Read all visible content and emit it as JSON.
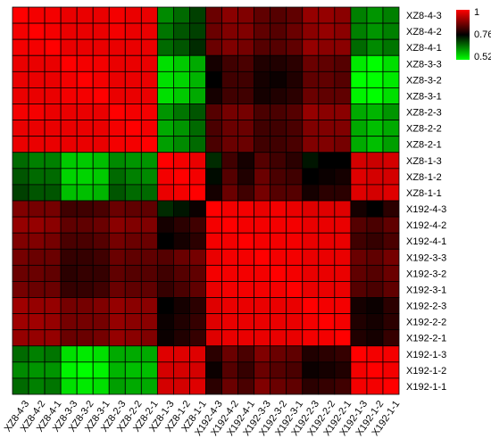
{
  "chart_data": {
    "type": "heatmap",
    "rows": [
      "XZ8-4-3",
      "XZ8-4-2",
      "XZ8-4-1",
      "XZ8-3-3",
      "XZ8-3-2",
      "XZ8-3-1",
      "XZ8-2-3",
      "XZ8-2-2",
      "XZ8-2-1",
      "XZ8-1-3",
      "XZ8-1-2",
      "XZ8-1-1",
      "X192-4-3",
      "X192-4-2",
      "X192-4-1",
      "X192-3-3",
      "X192-3-2",
      "X192-3-1",
      "X192-2-3",
      "X192-2-2",
      "X192-2-1",
      "X192-1-3",
      "X192-1-2",
      "X192-1-1"
    ],
    "columns": [
      "XZ8-4-3",
      "XZ8-4-2",
      "XZ8-4-1",
      "XZ8-3-3",
      "XZ8-3-2",
      "XZ8-3-1",
      "XZ8-2-3",
      "XZ8-2-2",
      "XZ8-2-1",
      "XZ8-1-3",
      "XZ8-1-2",
      "XZ8-1-1",
      "X192-4-3",
      "X192-4-2",
      "X192-4-1",
      "X192-3-3",
      "X192-3-2",
      "X192-3-1",
      "X192-2-3",
      "X192-2-2",
      "X192-2-1",
      "X192-1-3",
      "X192-1-2",
      "X192-1-1"
    ],
    "values": [
      [
        1.0,
        0.99,
        0.99,
        0.98,
        0.98,
        0.98,
        0.99,
        0.98,
        0.98,
        0.63,
        0.66,
        0.7,
        0.86,
        0.89,
        0.88,
        0.85,
        0.84,
        0.85,
        0.9,
        0.9,
        0.89,
        0.64,
        0.62,
        0.64
      ],
      [
        0.99,
        1.0,
        0.99,
        0.98,
        0.98,
        0.98,
        0.99,
        0.98,
        0.98,
        0.65,
        0.68,
        0.7,
        0.86,
        0.88,
        0.88,
        0.85,
        0.84,
        0.86,
        0.89,
        0.9,
        0.89,
        0.64,
        0.62,
        0.64
      ],
      [
        0.99,
        0.99,
        1.0,
        0.98,
        0.98,
        0.98,
        0.98,
        0.98,
        0.98,
        0.66,
        0.68,
        0.72,
        0.86,
        0.88,
        0.87,
        0.84,
        0.84,
        0.85,
        0.9,
        0.89,
        0.89,
        0.66,
        0.63,
        0.65
      ],
      [
        0.98,
        0.98,
        0.98,
        1.0,
        0.99,
        0.99,
        0.98,
        0.98,
        0.98,
        0.55,
        0.57,
        0.6,
        0.78,
        0.82,
        0.83,
        0.79,
        0.79,
        0.8,
        0.86,
        0.85,
        0.84,
        0.54,
        0.52,
        0.55
      ],
      [
        0.98,
        0.98,
        0.98,
        0.99,
        1.0,
        0.99,
        0.98,
        0.98,
        0.98,
        0.55,
        0.56,
        0.59,
        0.76,
        0.82,
        0.82,
        0.78,
        0.77,
        0.79,
        0.85,
        0.85,
        0.84,
        0.52,
        0.52,
        0.54
      ],
      [
        0.98,
        0.98,
        0.98,
        0.99,
        0.99,
        1.0,
        0.98,
        0.98,
        0.98,
        0.55,
        0.57,
        0.6,
        0.78,
        0.82,
        0.82,
        0.78,
        0.79,
        0.8,
        0.86,
        0.85,
        0.85,
        0.53,
        0.52,
        0.55
      ],
      [
        0.99,
        0.99,
        0.98,
        0.98,
        0.98,
        0.98,
        1.0,
        0.99,
        0.99,
        0.62,
        0.65,
        0.68,
        0.84,
        0.87,
        0.87,
        0.83,
        0.83,
        0.84,
        0.9,
        0.89,
        0.89,
        0.6,
        0.59,
        0.62
      ],
      [
        0.98,
        0.98,
        0.98,
        0.98,
        0.98,
        0.98,
        0.99,
        1.0,
        0.99,
        0.6,
        0.62,
        0.66,
        0.83,
        0.86,
        0.86,
        0.82,
        0.82,
        0.83,
        0.88,
        0.88,
        0.88,
        0.6,
        0.58,
        0.6
      ],
      [
        0.98,
        0.98,
        0.98,
        0.98,
        0.98,
        0.98,
        0.99,
        0.99,
        1.0,
        0.61,
        0.63,
        0.66,
        0.83,
        0.86,
        0.86,
        0.82,
        0.82,
        0.83,
        0.88,
        0.88,
        0.87,
        0.6,
        0.58,
        0.61
      ],
      [
        0.66,
        0.64,
        0.64,
        0.57,
        0.57,
        0.58,
        0.63,
        0.62,
        0.62,
        1.0,
        0.99,
        0.98,
        0.72,
        0.82,
        0.78,
        0.84,
        0.82,
        0.8,
        0.74,
        0.76,
        0.76,
        0.96,
        0.95,
        0.96
      ],
      [
        0.68,
        0.66,
        0.66,
        0.56,
        0.56,
        0.57,
        0.66,
        0.64,
        0.63,
        0.99,
        1.0,
        0.99,
        0.75,
        0.84,
        0.79,
        0.86,
        0.83,
        0.82,
        0.76,
        0.77,
        0.78,
        0.97,
        0.96,
        0.96
      ],
      [
        0.7,
        0.68,
        0.68,
        0.58,
        0.58,
        0.59,
        0.68,
        0.66,
        0.66,
        0.98,
        0.99,
        1.0,
        0.78,
        0.86,
        0.82,
        0.87,
        0.84,
        0.84,
        0.78,
        0.8,
        0.8,
        0.97,
        0.96,
        0.97
      ],
      [
        0.88,
        0.87,
        0.87,
        0.82,
        0.82,
        0.83,
        0.86,
        0.85,
        0.85,
        0.72,
        0.74,
        0.77,
        1.0,
        0.99,
        0.99,
        0.98,
        0.99,
        0.98,
        0.97,
        0.97,
        0.97,
        0.78,
        0.76,
        0.8
      ],
      [
        0.9,
        0.9,
        0.89,
        0.85,
        0.85,
        0.86,
        0.89,
        0.88,
        0.88,
        0.78,
        0.8,
        0.82,
        0.99,
        1.0,
        0.99,
        0.99,
        0.99,
        0.99,
        0.98,
        0.98,
        0.98,
        0.84,
        0.83,
        0.85
      ],
      [
        0.88,
        0.88,
        0.87,
        0.83,
        0.83,
        0.84,
        0.87,
        0.86,
        0.86,
        0.76,
        0.78,
        0.8,
        0.99,
        0.99,
        1.0,
        0.99,
        0.99,
        0.99,
        0.98,
        0.98,
        0.98,
        0.82,
        0.81,
        0.83
      ],
      [
        0.87,
        0.86,
        0.86,
        0.81,
        0.81,
        0.82,
        0.86,
        0.85,
        0.85,
        0.84,
        0.86,
        0.87,
        0.98,
        0.99,
        0.99,
        1.0,
        0.99,
        0.99,
        0.98,
        0.98,
        0.98,
        0.86,
        0.85,
        0.87
      ],
      [
        0.86,
        0.86,
        0.85,
        0.8,
        0.81,
        0.81,
        0.85,
        0.84,
        0.84,
        0.82,
        0.84,
        0.85,
        0.99,
        0.99,
        0.99,
        0.99,
        1.0,
        0.99,
        0.98,
        0.98,
        0.98,
        0.85,
        0.84,
        0.86
      ],
      [
        0.87,
        0.86,
        0.86,
        0.81,
        0.81,
        0.82,
        0.86,
        0.85,
        0.85,
        0.81,
        0.83,
        0.85,
        0.98,
        0.99,
        0.99,
        0.99,
        0.99,
        1.0,
        0.98,
        0.98,
        0.98,
        0.84,
        0.83,
        0.85
      ],
      [
        0.91,
        0.9,
        0.9,
        0.87,
        0.87,
        0.88,
        0.9,
        0.89,
        0.89,
        0.76,
        0.78,
        0.8,
        0.97,
        0.98,
        0.98,
        0.98,
        0.98,
        0.98,
        1.0,
        0.99,
        0.99,
        0.78,
        0.77,
        0.8
      ],
      [
        0.91,
        0.91,
        0.9,
        0.87,
        0.87,
        0.87,
        0.9,
        0.89,
        0.89,
        0.77,
        0.79,
        0.81,
        0.97,
        0.98,
        0.98,
        0.98,
        0.98,
        0.98,
        0.99,
        1.0,
        0.99,
        0.79,
        0.78,
        0.8
      ],
      [
        0.9,
        0.9,
        0.9,
        0.86,
        0.86,
        0.87,
        0.9,
        0.89,
        0.88,
        0.77,
        0.79,
        0.81,
        0.97,
        0.98,
        0.98,
        0.98,
        0.98,
        0.98,
        0.99,
        0.99,
        1.0,
        0.79,
        0.78,
        0.81
      ],
      [
        0.66,
        0.64,
        0.65,
        0.55,
        0.54,
        0.55,
        0.6,
        0.6,
        0.6,
        0.97,
        0.97,
        0.97,
        0.8,
        0.86,
        0.83,
        0.88,
        0.86,
        0.85,
        0.79,
        0.8,
        0.81,
        1.0,
        0.99,
        0.99
      ],
      [
        0.63,
        0.62,
        0.62,
        0.53,
        0.52,
        0.53,
        0.59,
        0.58,
        0.58,
        0.96,
        0.96,
        0.96,
        0.77,
        0.84,
        0.81,
        0.86,
        0.84,
        0.83,
        0.77,
        0.78,
        0.79,
        0.99,
        1.0,
        0.99
      ],
      [
        0.66,
        0.64,
        0.65,
        0.55,
        0.54,
        0.55,
        0.61,
        0.6,
        0.6,
        0.96,
        0.96,
        0.97,
        0.8,
        0.86,
        0.83,
        0.88,
        0.86,
        0.85,
        0.8,
        0.81,
        0.82,
        0.99,
        0.99,
        1.0
      ]
    ],
    "colorscale": {
      "min": 0.52,
      "mid": 0.76,
      "max": 1,
      "min_color": "#00ff00",
      "mid_color": "#000000",
      "max_color": "#ff0000",
      "ticks": [
        "1",
        "0.76",
        "0.52"
      ]
    },
    "legend_position": "top-right",
    "grid": true
  }
}
